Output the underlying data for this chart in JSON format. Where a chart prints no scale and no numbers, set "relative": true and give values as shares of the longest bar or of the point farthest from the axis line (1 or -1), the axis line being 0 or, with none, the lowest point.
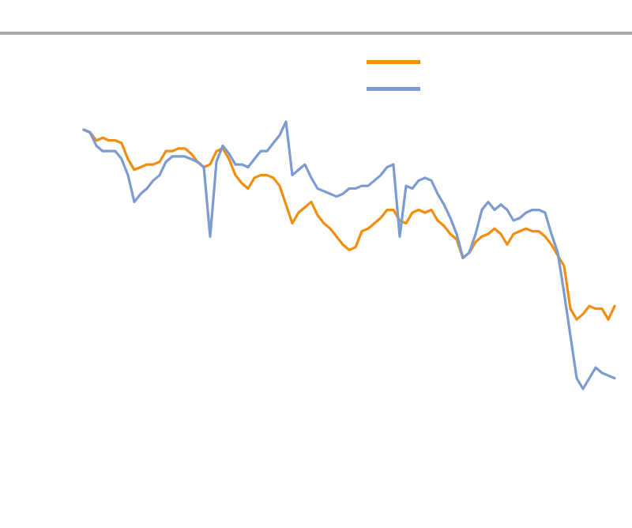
{
  "chart_data": {
    "type": "line",
    "relative": true,
    "categories": [
      null,
      null,
      null,
      null,
      null,
      null,
      null,
      null,
      null,
      null,
      null,
      null,
      null,
      null,
      null,
      null,
      null,
      null,
      null,
      null,
      null,
      null,
      null,
      null,
      null,
      null,
      null,
      null,
      null,
      null,
      null,
      null,
      null,
      null,
      null,
      null,
      null,
      null,
      null,
      null,
      null,
      null,
      null,
      null,
      null,
      null,
      null,
      null,
      null,
      null,
      null,
      null,
      null,
      null,
      null,
      null,
      null,
      null,
      null,
      null,
      null,
      null,
      null,
      null,
      null,
      null,
      null,
      null,
      null,
      null,
      null,
      null,
      null,
      null,
      null,
      null,
      null,
      null,
      null,
      null,
      null,
      null,
      null,
      null,
      null
    ],
    "series": [
      {
        "color": "#f28e0f",
        "values": [
          0.97,
          0.96,
          0.93,
          0.94,
          0.93,
          0.93,
          0.92,
          0.86,
          0.82,
          0.83,
          0.84,
          0.84,
          0.85,
          0.89,
          0.89,
          0.9,
          0.9,
          0.88,
          0.85,
          0.83,
          0.84,
          0.89,
          0.9,
          0.86,
          0.8,
          0.77,
          0.75,
          0.79,
          0.8,
          0.8,
          0.79,
          0.76,
          0.69,
          0.62,
          0.66,
          0.68,
          0.7,
          0.65,
          0.62,
          0.6,
          0.57,
          0.54,
          0.52,
          0.53,
          0.59,
          0.6,
          0.62,
          0.64,
          0.67,
          0.67,
          0.63,
          0.62,
          0.66,
          0.67,
          0.66,
          0.67,
          0.63,
          0.61,
          0.58,
          0.56,
          0.49,
          0.51,
          0.55,
          0.57,
          0.58,
          0.6,
          0.58,
          0.54,
          0.58,
          0.59,
          0.6,
          0.59,
          0.59,
          0.57,
          0.54,
          0.5,
          0.46,
          0.3,
          0.26,
          0.28,
          0.31,
          0.3,
          0.3,
          0.26,
          0.31
        ]
      },
      {
        "color": "#7b9bd1",
        "values": [
          0.97,
          0.96,
          0.91,
          0.89,
          0.89,
          0.89,
          0.86,
          0.8,
          0.7,
          0.73,
          0.75,
          0.78,
          0.8,
          0.85,
          0.87,
          0.87,
          0.87,
          0.86,
          0.85,
          0.83,
          0.57,
          0.85,
          0.91,
          0.88,
          0.84,
          0.84,
          0.83,
          0.86,
          0.89,
          0.89,
          0.92,
          0.95,
          1,
          0.8,
          0.82,
          0.84,
          0.79,
          0.75,
          0.74,
          0.73,
          0.72,
          0.73,
          0.75,
          0.75,
          0.76,
          0.76,
          0.78,
          0.8,
          0.83,
          0.84,
          0.57,
          0.76,
          0.75,
          0.78,
          0.79,
          0.78,
          0.73,
          0.69,
          0.64,
          0.58,
          0.49,
          0.51,
          0.58,
          0.67,
          0.7,
          0.67,
          0.69,
          0.67,
          0.63,
          0.64,
          0.66,
          0.67,
          0.67,
          0.66,
          0.58,
          0.51,
          0.36,
          0.2,
          0.04,
          0,
          0.04,
          0.08,
          0.06,
          0.05,
          0.04
        ]
      }
    ]
  }
}
